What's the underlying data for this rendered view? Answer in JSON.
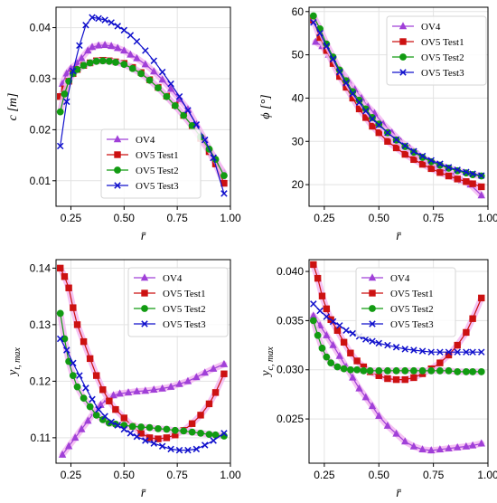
{
  "chart_data": [
    {
      "type": "line",
      "xlabel": "r̄",
      "ylabel": "c [m]",
      "xlim": [
        0.18,
        1.0
      ],
      "ylim": [
        0.005,
        0.044
      ],
      "xticks": [
        "0.25",
        "0.50",
        "0.75",
        "1.00"
      ],
      "yticks": [
        "0.01",
        "0.02",
        "0.03",
        "0.04"
      ],
      "xtick_values": [
        0.25,
        0.5,
        0.75,
        1.0
      ],
      "ytick_values": [
        0.01,
        0.02,
        0.03,
        0.04
      ],
      "grid": true,
      "legend_position": "lower-center",
      "series": [
        {
          "name": "OV4",
          "x": [
            0.21,
            0.23,
            0.25,
            0.28,
            0.3,
            0.33,
            0.35,
            0.38,
            0.41,
            0.44,
            0.47,
            0.5,
            0.53,
            0.56,
            0.6,
            0.64,
            0.68,
            0.72,
            0.76,
            0.8,
            0.84,
            0.88,
            0.92,
            0.97
          ],
          "y": [
            0.029,
            0.031,
            0.032,
            0.033,
            0.034,
            0.0355,
            0.0362,
            0.0365,
            0.0366,
            0.0364,
            0.036,
            0.0355,
            0.0347,
            0.034,
            0.0328,
            0.0314,
            0.0298,
            0.028,
            0.026,
            0.024,
            0.021,
            0.018,
            0.0145,
            0.0115
          ]
        },
        {
          "name": "OV5 Test1",
          "x": [
            0.2,
            0.22,
            0.24,
            0.26,
            0.28,
            0.31,
            0.34,
            0.37,
            0.4,
            0.43,
            0.46,
            0.5,
            0.54,
            0.58,
            0.62,
            0.66,
            0.7,
            0.74,
            0.78,
            0.82,
            0.86,
            0.9,
            0.93,
            0.97
          ],
          "y": [
            0.0265,
            0.028,
            0.0295,
            0.031,
            0.0318,
            0.0326,
            0.0331,
            0.0335,
            0.0336,
            0.0335,
            0.0333,
            0.033,
            0.0322,
            0.0312,
            0.0298,
            0.0283,
            0.0266,
            0.0248,
            0.0228,
            0.0207,
            0.0183,
            0.0157,
            0.0133,
            0.0095
          ]
        },
        {
          "name": "OV5 Test2",
          "x": [
            0.2,
            0.22,
            0.24,
            0.26,
            0.28,
            0.31,
            0.34,
            0.37,
            0.4,
            0.43,
            0.46,
            0.5,
            0.54,
            0.58,
            0.62,
            0.66,
            0.7,
            0.74,
            0.78,
            0.82,
            0.86,
            0.9,
            0.93,
            0.97
          ],
          "y": [
            0.0235,
            0.027,
            0.0295,
            0.031,
            0.0318,
            0.0326,
            0.0331,
            0.0334,
            0.0335,
            0.0334,
            0.0332,
            0.0328,
            0.032,
            0.031,
            0.0297,
            0.0282,
            0.0265,
            0.0247,
            0.0228,
            0.0208,
            0.0186,
            0.0162,
            0.0142,
            0.011
          ]
        },
        {
          "name": "OV5 Test3",
          "x": [
            0.2,
            0.23,
            0.26,
            0.29,
            0.32,
            0.35,
            0.38,
            0.41,
            0.44,
            0.47,
            0.5,
            0.53,
            0.56,
            0.6,
            0.64,
            0.68,
            0.72,
            0.76,
            0.8,
            0.84,
            0.88,
            0.92,
            0.97
          ],
          "y": [
            0.0168,
            0.0255,
            0.0315,
            0.0365,
            0.0405,
            0.042,
            0.0418,
            0.0415,
            0.041,
            0.0403,
            0.0395,
            0.0385,
            0.0373,
            0.0355,
            0.0335,
            0.0313,
            0.029,
            0.0265,
            0.0238,
            0.021,
            0.018,
            0.0145,
            0.0075
          ]
        }
      ]
    },
    {
      "type": "line",
      "xlabel": "r̄",
      "ylabel": "ϕ [°]",
      "xlim": [
        0.18,
        1.0
      ],
      "ylim": [
        15.0,
        61.0
      ],
      "xticks": [
        "0.25",
        "0.50",
        "0.75",
        "1.00"
      ],
      "yticks": [
        "20",
        "30",
        "40",
        "50",
        "60"
      ],
      "xtick_values": [
        0.25,
        0.5,
        0.75,
        1.0
      ],
      "ytick_values": [
        20,
        30,
        40,
        50,
        60
      ],
      "grid": true,
      "legend_position": "top-right",
      "series": [
        {
          "name": "OV4",
          "x": [
            0.21,
            0.24,
            0.27,
            0.3,
            0.33,
            0.36,
            0.39,
            0.42,
            0.45,
            0.48,
            0.52,
            0.56,
            0.6,
            0.64,
            0.68,
            0.72,
            0.76,
            0.8,
            0.84,
            0.88,
            0.92,
            0.97
          ],
          "y": [
            53.0,
            52.0,
            50.0,
            48.0,
            46.0,
            44.0,
            42.0,
            40.0,
            38.0,
            36.5,
            34.0,
            32.0,
            30.0,
            28.5,
            27.0,
            25.5,
            24.2,
            23.0,
            22.0,
            21.0,
            20.0,
            17.5
          ]
        },
        {
          "name": "OV5 Test1",
          "x": [
            0.2,
            0.23,
            0.26,
            0.29,
            0.32,
            0.35,
            0.38,
            0.41,
            0.44,
            0.47,
            0.5,
            0.54,
            0.58,
            0.62,
            0.66,
            0.7,
            0.74,
            0.78,
            0.82,
            0.86,
            0.9,
            0.93,
            0.97
          ],
          "y": [
            58.0,
            54.0,
            51.0,
            48.0,
            45.0,
            42.5,
            40.0,
            37.5,
            35.5,
            33.5,
            32.0,
            30.0,
            28.5,
            27.0,
            25.8,
            24.7,
            23.7,
            22.8,
            22.0,
            21.3,
            20.7,
            20.2,
            19.5
          ]
        },
        {
          "name": "OV5 Test2",
          "x": [
            0.2,
            0.23,
            0.26,
            0.29,
            0.32,
            0.35,
            0.38,
            0.41,
            0.44,
            0.47,
            0.5,
            0.54,
            0.58,
            0.62,
            0.66,
            0.7,
            0.74,
            0.78,
            0.82,
            0.86,
            0.9,
            0.93,
            0.97
          ],
          "y": [
            59.0,
            56.0,
            52.5,
            49.5,
            46.5,
            44.0,
            41.5,
            39.5,
            37.5,
            35.5,
            34.0,
            32.0,
            30.3,
            28.8,
            27.5,
            26.3,
            25.3,
            24.5,
            23.8,
            23.2,
            22.7,
            22.3,
            22.0
          ]
        },
        {
          "name": "OV5 Test3",
          "x": [
            0.2,
            0.23,
            0.26,
            0.29,
            0.32,
            0.35,
            0.38,
            0.41,
            0.44,
            0.47,
            0.5,
            0.54,
            0.58,
            0.62,
            0.66,
            0.7,
            0.74,
            0.78,
            0.82,
            0.86,
            0.9,
            0.93,
            0.97
          ],
          "y": [
            57.5,
            55.0,
            52.0,
            49.0,
            46.0,
            43.5,
            41.0,
            39.0,
            37.0,
            35.2,
            33.8,
            32.0,
            30.4,
            29.0,
            27.7,
            26.6,
            25.6,
            24.8,
            24.0,
            23.4,
            22.9,
            22.5,
            22.1
          ]
        }
      ]
    },
    {
      "type": "line",
      "xlabel": "r̄",
      "ylabel": "y_{t, max}",
      "xlim": [
        0.18,
        1.0
      ],
      "ylim": [
        0.1055,
        0.1415
      ],
      "xticks": [
        "0.25",
        "0.50",
        "0.75",
        "1.00"
      ],
      "yticks": [
        "0.11",
        "0.12",
        "0.13",
        "0.14"
      ],
      "xtick_values": [
        0.25,
        0.5,
        0.75,
        1.0
      ],
      "ytick_values": [
        0.11,
        0.12,
        0.13,
        0.14
      ],
      "grid": true,
      "legend_position": "top-right",
      "series": [
        {
          "name": "OV4",
          "x": [
            0.21,
            0.24,
            0.27,
            0.3,
            0.33,
            0.36,
            0.39,
            0.42,
            0.45,
            0.48,
            0.52,
            0.56,
            0.6,
            0.64,
            0.68,
            0.72,
            0.76,
            0.8,
            0.84,
            0.88,
            0.92,
            0.97
          ],
          "y": [
            0.107,
            0.1085,
            0.11,
            0.1115,
            0.113,
            0.1145,
            0.1158,
            0.1168,
            0.1175,
            0.1178,
            0.118,
            0.1182,
            0.1183,
            0.1185,
            0.1187,
            0.119,
            0.1195,
            0.12,
            0.1207,
            0.1215,
            0.1222,
            0.123
          ]
        },
        {
          "name": "OV5 Test1",
          "x": [
            0.2,
            0.22,
            0.24,
            0.26,
            0.28,
            0.31,
            0.34,
            0.37,
            0.4,
            0.43,
            0.46,
            0.5,
            0.54,
            0.58,
            0.62,
            0.66,
            0.7,
            0.74,
            0.78,
            0.82,
            0.86,
            0.9,
            0.93,
            0.97
          ],
          "y": [
            0.14,
            0.1385,
            0.1365,
            0.133,
            0.13,
            0.127,
            0.124,
            0.121,
            0.1185,
            0.1165,
            0.115,
            0.1135,
            0.112,
            0.1108,
            0.11,
            0.1098,
            0.11,
            0.1105,
            0.1113,
            0.1125,
            0.114,
            0.116,
            0.118,
            0.1213
          ]
        },
        {
          "name": "OV5 Test2",
          "x": [
            0.2,
            0.22,
            0.24,
            0.26,
            0.28,
            0.31,
            0.34,
            0.37,
            0.4,
            0.43,
            0.46,
            0.5,
            0.54,
            0.58,
            0.62,
            0.66,
            0.7,
            0.74,
            0.78,
            0.82,
            0.86,
            0.9,
            0.93,
            0.97
          ],
          "y": [
            0.132,
            0.1275,
            0.1235,
            0.121,
            0.119,
            0.117,
            0.1155,
            0.114,
            0.1132,
            0.1126,
            0.1124,
            0.1122,
            0.112,
            0.1119,
            0.1118,
            0.1116,
            0.1115,
            0.1113,
            0.1112,
            0.111,
            0.1108,
            0.1106,
            0.1105,
            0.1103
          ]
        },
        {
          "name": "OV5 Test3",
          "x": [
            0.2,
            0.23,
            0.26,
            0.29,
            0.32,
            0.35,
            0.38,
            0.41,
            0.44,
            0.47,
            0.5,
            0.53,
            0.56,
            0.6,
            0.64,
            0.68,
            0.72,
            0.76,
            0.8,
            0.84,
            0.88,
            0.92,
            0.97
          ],
          "y": [
            0.1275,
            0.1255,
            0.1232,
            0.121,
            0.1188,
            0.1168,
            0.115,
            0.1138,
            0.1128,
            0.1122,
            0.1115,
            0.1108,
            0.1102,
            0.1095,
            0.109,
            0.1085,
            0.108,
            0.1078,
            0.1078,
            0.108,
            0.1087,
            0.1095,
            0.1108
          ]
        }
      ]
    },
    {
      "type": "line",
      "xlabel": "r̄",
      "ylabel": "y_{c, max}",
      "xlim": [
        0.18,
        1.0
      ],
      "ylim": [
        0.0205,
        0.0412
      ],
      "xticks": [
        "0.25",
        "0.50",
        "0.75",
        "1.00"
      ],
      "yticks": [
        "0.025",
        "0.030",
        "0.035",
        "0.040"
      ],
      "xtick_values": [
        0.25,
        0.5,
        0.75,
        1.0
      ],
      "ytick_values": [
        0.025,
        0.03,
        0.035,
        0.04
      ],
      "grid": true,
      "legend_position": "top-right",
      "series": [
        {
          "name": "OV4",
          "x": [
            0.2,
            0.23,
            0.26,
            0.29,
            0.32,
            0.35,
            0.38,
            0.41,
            0.44,
            0.47,
            0.5,
            0.54,
            0.58,
            0.62,
            0.66,
            0.7,
            0.74,
            0.78,
            0.82,
            0.86,
            0.9,
            0.93,
            0.97
          ],
          "y": [
            0.0355,
            0.0345,
            0.0335,
            0.0325,
            0.0314,
            0.0303,
            0.0292,
            0.0281,
            0.0272,
            0.0263,
            0.0253,
            0.0243,
            0.0235,
            0.0227,
            0.0222,
            0.0219,
            0.0218,
            0.0219,
            0.022,
            0.0221,
            0.0222,
            0.0223,
            0.0225
          ]
        },
        {
          "name": "OV5 Test1",
          "x": [
            0.2,
            0.22,
            0.24,
            0.26,
            0.28,
            0.31,
            0.34,
            0.37,
            0.4,
            0.43,
            0.46,
            0.5,
            0.54,
            0.58,
            0.62,
            0.66,
            0.7,
            0.74,
            0.78,
            0.82,
            0.86,
            0.9,
            0.93,
            0.97
          ],
          "y": [
            0.0407,
            0.0393,
            0.0375,
            0.0362,
            0.0351,
            0.034,
            0.0328,
            0.0317,
            0.0309,
            0.0303,
            0.0298,
            0.0294,
            0.0291,
            0.029,
            0.029,
            0.0292,
            0.0296,
            0.0301,
            0.0307,
            0.0315,
            0.0325,
            0.0338,
            0.0352,
            0.0373
          ]
        },
        {
          "name": "OV5 Test2",
          "x": [
            0.2,
            0.22,
            0.24,
            0.26,
            0.28,
            0.31,
            0.34,
            0.37,
            0.4,
            0.43,
            0.46,
            0.5,
            0.54,
            0.58,
            0.62,
            0.66,
            0.7,
            0.74,
            0.78,
            0.82,
            0.86,
            0.9,
            0.93,
            0.97
          ],
          "y": [
            0.035,
            0.0335,
            0.0322,
            0.0313,
            0.0307,
            0.0303,
            0.0301,
            0.03,
            0.03,
            0.0299,
            0.0299,
            0.0299,
            0.0299,
            0.0299,
            0.0299,
            0.0299,
            0.0299,
            0.0299,
            0.0299,
            0.0299,
            0.0298,
            0.0298,
            0.0298,
            0.0298
          ]
        },
        {
          "name": "OV5 Test3",
          "x": [
            0.2,
            0.23,
            0.26,
            0.29,
            0.32,
            0.35,
            0.38,
            0.41,
            0.44,
            0.47,
            0.5,
            0.54,
            0.58,
            0.62,
            0.66,
            0.7,
            0.74,
            0.78,
            0.82,
            0.86,
            0.9,
            0.93,
            0.97
          ],
          "y": [
            0.0367,
            0.036,
            0.0354,
            0.0349,
            0.0345,
            0.034,
            0.0337,
            0.0334,
            0.0331,
            0.0329,
            0.0327,
            0.0325,
            0.0323,
            0.0321,
            0.032,
            0.0319,
            0.0318,
            0.0318,
            0.0318,
            0.0318,
            0.0318,
            0.0318,
            0.0318
          ]
        }
      ]
    }
  ],
  "series_style": {
    "OV4": {
      "color": "#a040d8",
      "glow": "#f3b7f1",
      "marker": "triangle"
    },
    "OV5 Test1": {
      "color": "#cc1111",
      "glow": "#f3b7f1",
      "marker": "square"
    },
    "OV5 Test2": {
      "color": "#129b12",
      "glow": "#f3b7f1",
      "marker": "circle"
    },
    "OV5 Test3": {
      "color": "#1010cc",
      "glow": "",
      "marker": "x"
    }
  },
  "grid_color": "#e3e3e3"
}
